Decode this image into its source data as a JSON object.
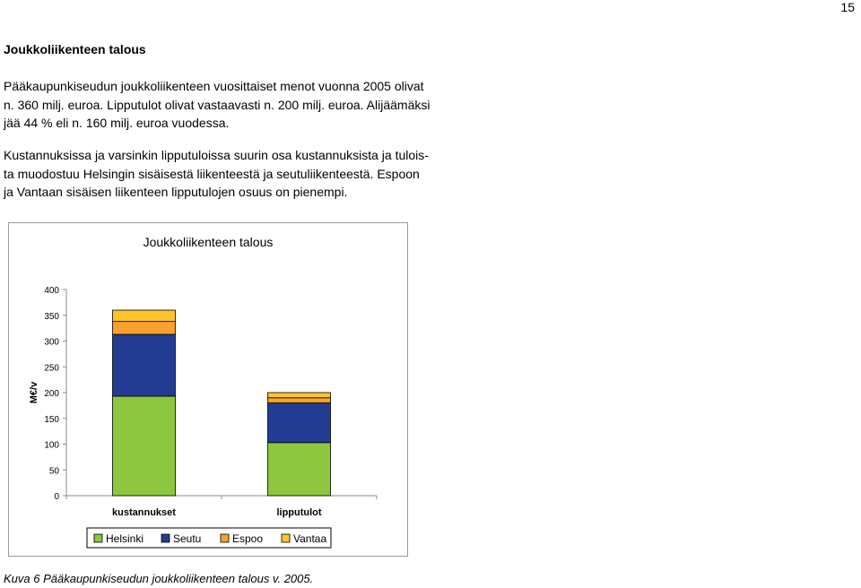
{
  "page": {
    "number": "15",
    "heading": "Joukkoliikenteen talous",
    "paragraph1": [
      "Pääkaupunkiseudun joukkoliikenteen vuosittaiset menot vuonna 2005 olivat",
      "n. 360 milj. euroa. Lipputulot olivat vastaavasti n. 200 milj. euroa. Alijäämäksi",
      "jää 44 % eli n. 160 milj. euroa vuodessa."
    ],
    "paragraph2": [
      "Kustannuksissa ja varsinkin lipputuloissa suurin osa kustannuksista ja tulois-",
      "ta muodostuu Helsingin sisäisestä liikenteestä ja seutuliikenteestä. Espoon",
      "ja Vantaan sisäisen liikenteen lipputulojen osuus on pienempi."
    ],
    "caption": "Kuva 6 Pääkaupunkiseudun joukkoliikenteen talous v. 2005."
  },
  "chart_data": {
    "type": "bar",
    "stacked": true,
    "title": "Joukkoliikenteen talous",
    "xlabel": "",
    "ylabel": "M€/v",
    "ylim": [
      0,
      400
    ],
    "yticks": [
      0,
      50,
      100,
      150,
      200,
      250,
      300,
      350,
      400
    ],
    "grid": false,
    "legend_position": "bottom",
    "categories": [
      "kustannukset",
      "lipputulot"
    ],
    "series": [
      {
        "name": "Helsinki",
        "color": "#8dc63f",
        "values": [
          193,
          103
        ]
      },
      {
        "name": "Seutu",
        "color": "#233c93",
        "values": [
          120,
          77
        ]
      },
      {
        "name": "Espoo",
        "color": "#f7a12e",
        "values": [
          25,
          10
        ]
      },
      {
        "name": "Vantaa",
        "color": "#fdc42c",
        "values": [
          22,
          10
        ]
      }
    ]
  }
}
